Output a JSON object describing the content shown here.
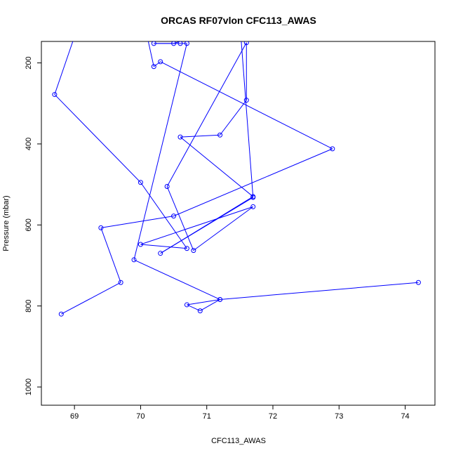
{
  "chart_data": {
    "type": "line",
    "title": "ORCAS RF07vlon CFC113_AWAS",
    "xlabel": "CFC113_AWAS",
    "ylabel": "Pressure (mbar)",
    "xlim": [
      68.5,
      74.45
    ],
    "ylim": [
      1045,
      147
    ],
    "y_reversed": true,
    "x_ticks": [
      69,
      70,
      71,
      72,
      73,
      74
    ],
    "y_ticks": [
      200,
      400,
      600,
      800,
      1000
    ],
    "series_color": "#0000ff",
    "marker": "open-circle",
    "grid": false,
    "legend": "none",
    "series": [
      {
        "x": [
          68.8,
          69.7,
          69.4,
          70.5,
          72.9,
          70.3,
          70.2,
          70.1,
          70.3,
          69.0,
          68.7,
          70.0,
          70.7,
          70.0,
          71.7,
          70.8,
          70.4,
          71.6,
          71.6,
          71.2,
          70.6,
          71.7,
          70.3,
          71.7,
          71.5,
          70.5,
          70.2,
          70.6,
          70.7,
          69.9,
          71.2,
          70.7,
          70.9,
          71.2,
          74.2
        ],
        "y": [
          820,
          742,
          607,
          578,
          412,
          197,
          209,
          135,
          132,
          135,
          278,
          495,
          658,
          648,
          555,
          663,
          505,
          150,
          292,
          378,
          383,
          530,
          670,
          532,
          100,
          152,
          152,
          152,
          152,
          686,
          784,
          797,
          812,
          784,
          742
        ]
      }
    ]
  }
}
